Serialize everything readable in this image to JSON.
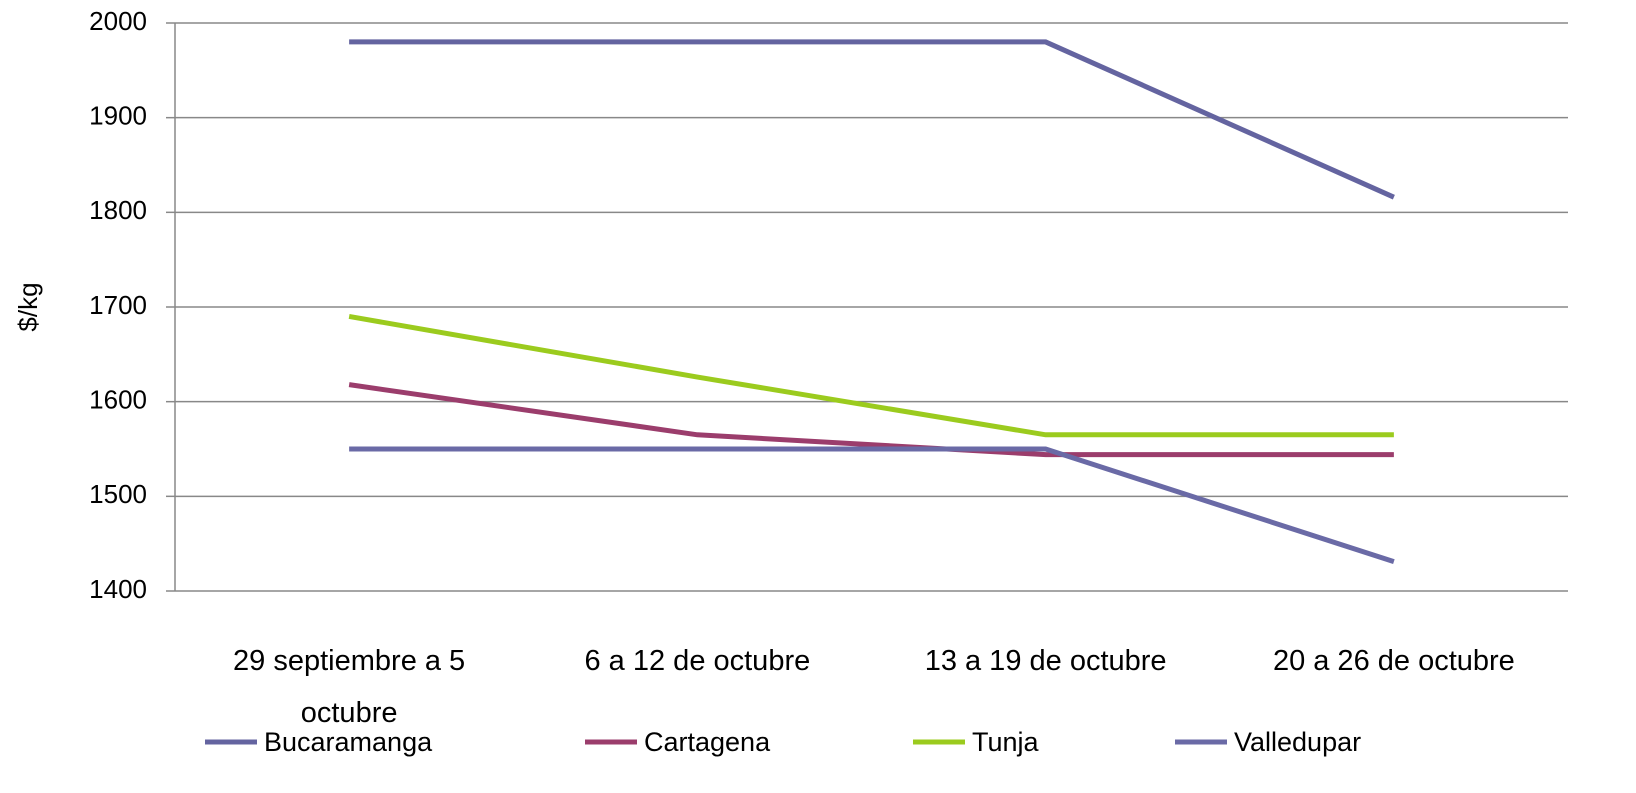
{
  "chart_data": {
    "type": "line",
    "y_label": "$/kg",
    "categories": [
      "29 septiembre a 5 octubre",
      "6 a 12 de octubre",
      "13 a 19 de octubre",
      "20 a 26 de octubre"
    ],
    "series": [
      {
        "name": "Bucaramanga",
        "color": "#6464a0",
        "values": [
          1980,
          1980,
          1980,
          1816
        ]
      },
      {
        "name": "Cartagena",
        "color": "#9b3d6c",
        "values": [
          1618,
          1565,
          1544,
          1544
        ]
      },
      {
        "name": "Tunja",
        "color": "#9bcb1e",
        "values": [
          1690,
          1626,
          1565,
          1565
        ]
      },
      {
        "name": "Valledupar",
        "color": "#6a6aa6",
        "values": [
          1550,
          1550,
          1550,
          1431
        ]
      }
    ],
    "ylim": [
      1400,
      2000
    ],
    "yticks": [
      1400,
      1500,
      1600,
      1700,
      1800,
      1900,
      2000
    ],
    "grid": true,
    "legend": "bottom"
  }
}
